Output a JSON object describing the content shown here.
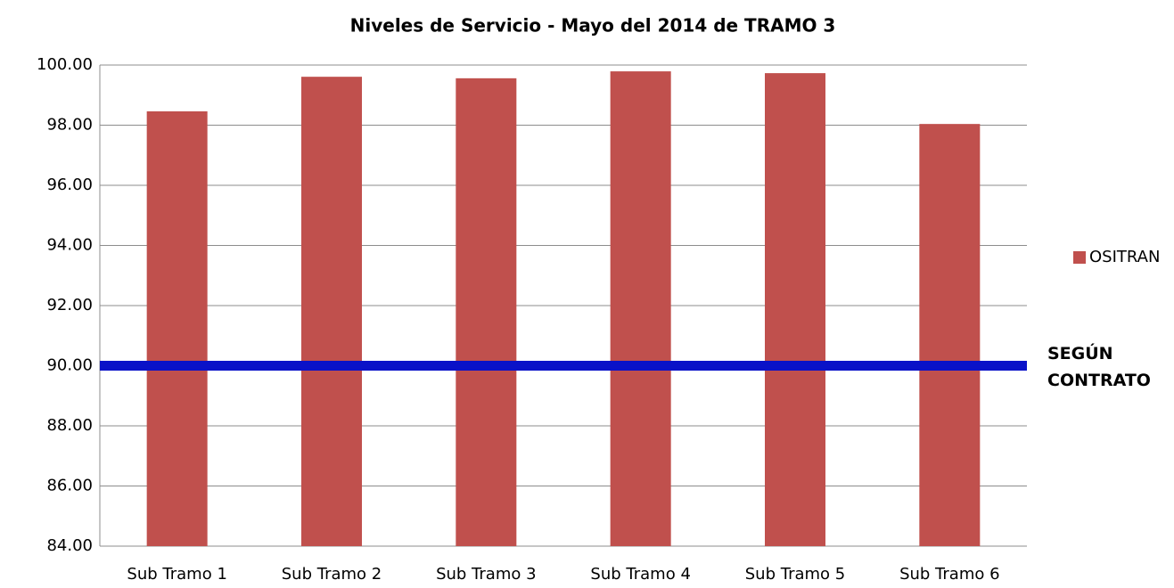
{
  "chart_data": {
    "type": "bar",
    "title": "Niveles de Servicio - Mayo del 2014 de TRAMO 3",
    "categories": [
      "Sub Tramo 1",
      "Sub Tramo 2",
      "Sub Tramo 3",
      "Sub Tramo 4",
      "Sub Tramo 5",
      "Sub Tramo 6"
    ],
    "series": [
      {
        "name": "OSITRAN",
        "color": "#c0504d",
        "values": [
          98.46,
          99.61,
          99.56,
          99.79,
          99.73,
          98.04
        ]
      }
    ],
    "ylim": [
      84,
      100
    ],
    "yticks": [
      {
        "value": 84,
        "label": "84.00"
      },
      {
        "value": 86,
        "label": "86.00"
      },
      {
        "value": 88,
        "label": "88.00"
      },
      {
        "value": 90,
        "label": "90.00"
      },
      {
        "value": 92,
        "label": "92.00"
      },
      {
        "value": 94,
        "label": "94.00"
      },
      {
        "value": 96,
        "label": "96.00"
      },
      {
        "value": 98,
        "label": "98.00"
      },
      {
        "value": 100,
        "label": "100.00"
      }
    ],
    "grid": true,
    "legend": "right",
    "reference_line": {
      "value": 90,
      "color": "#0a12c8",
      "label": [
        "SEGÚN",
        "CONTRATO"
      ]
    }
  }
}
